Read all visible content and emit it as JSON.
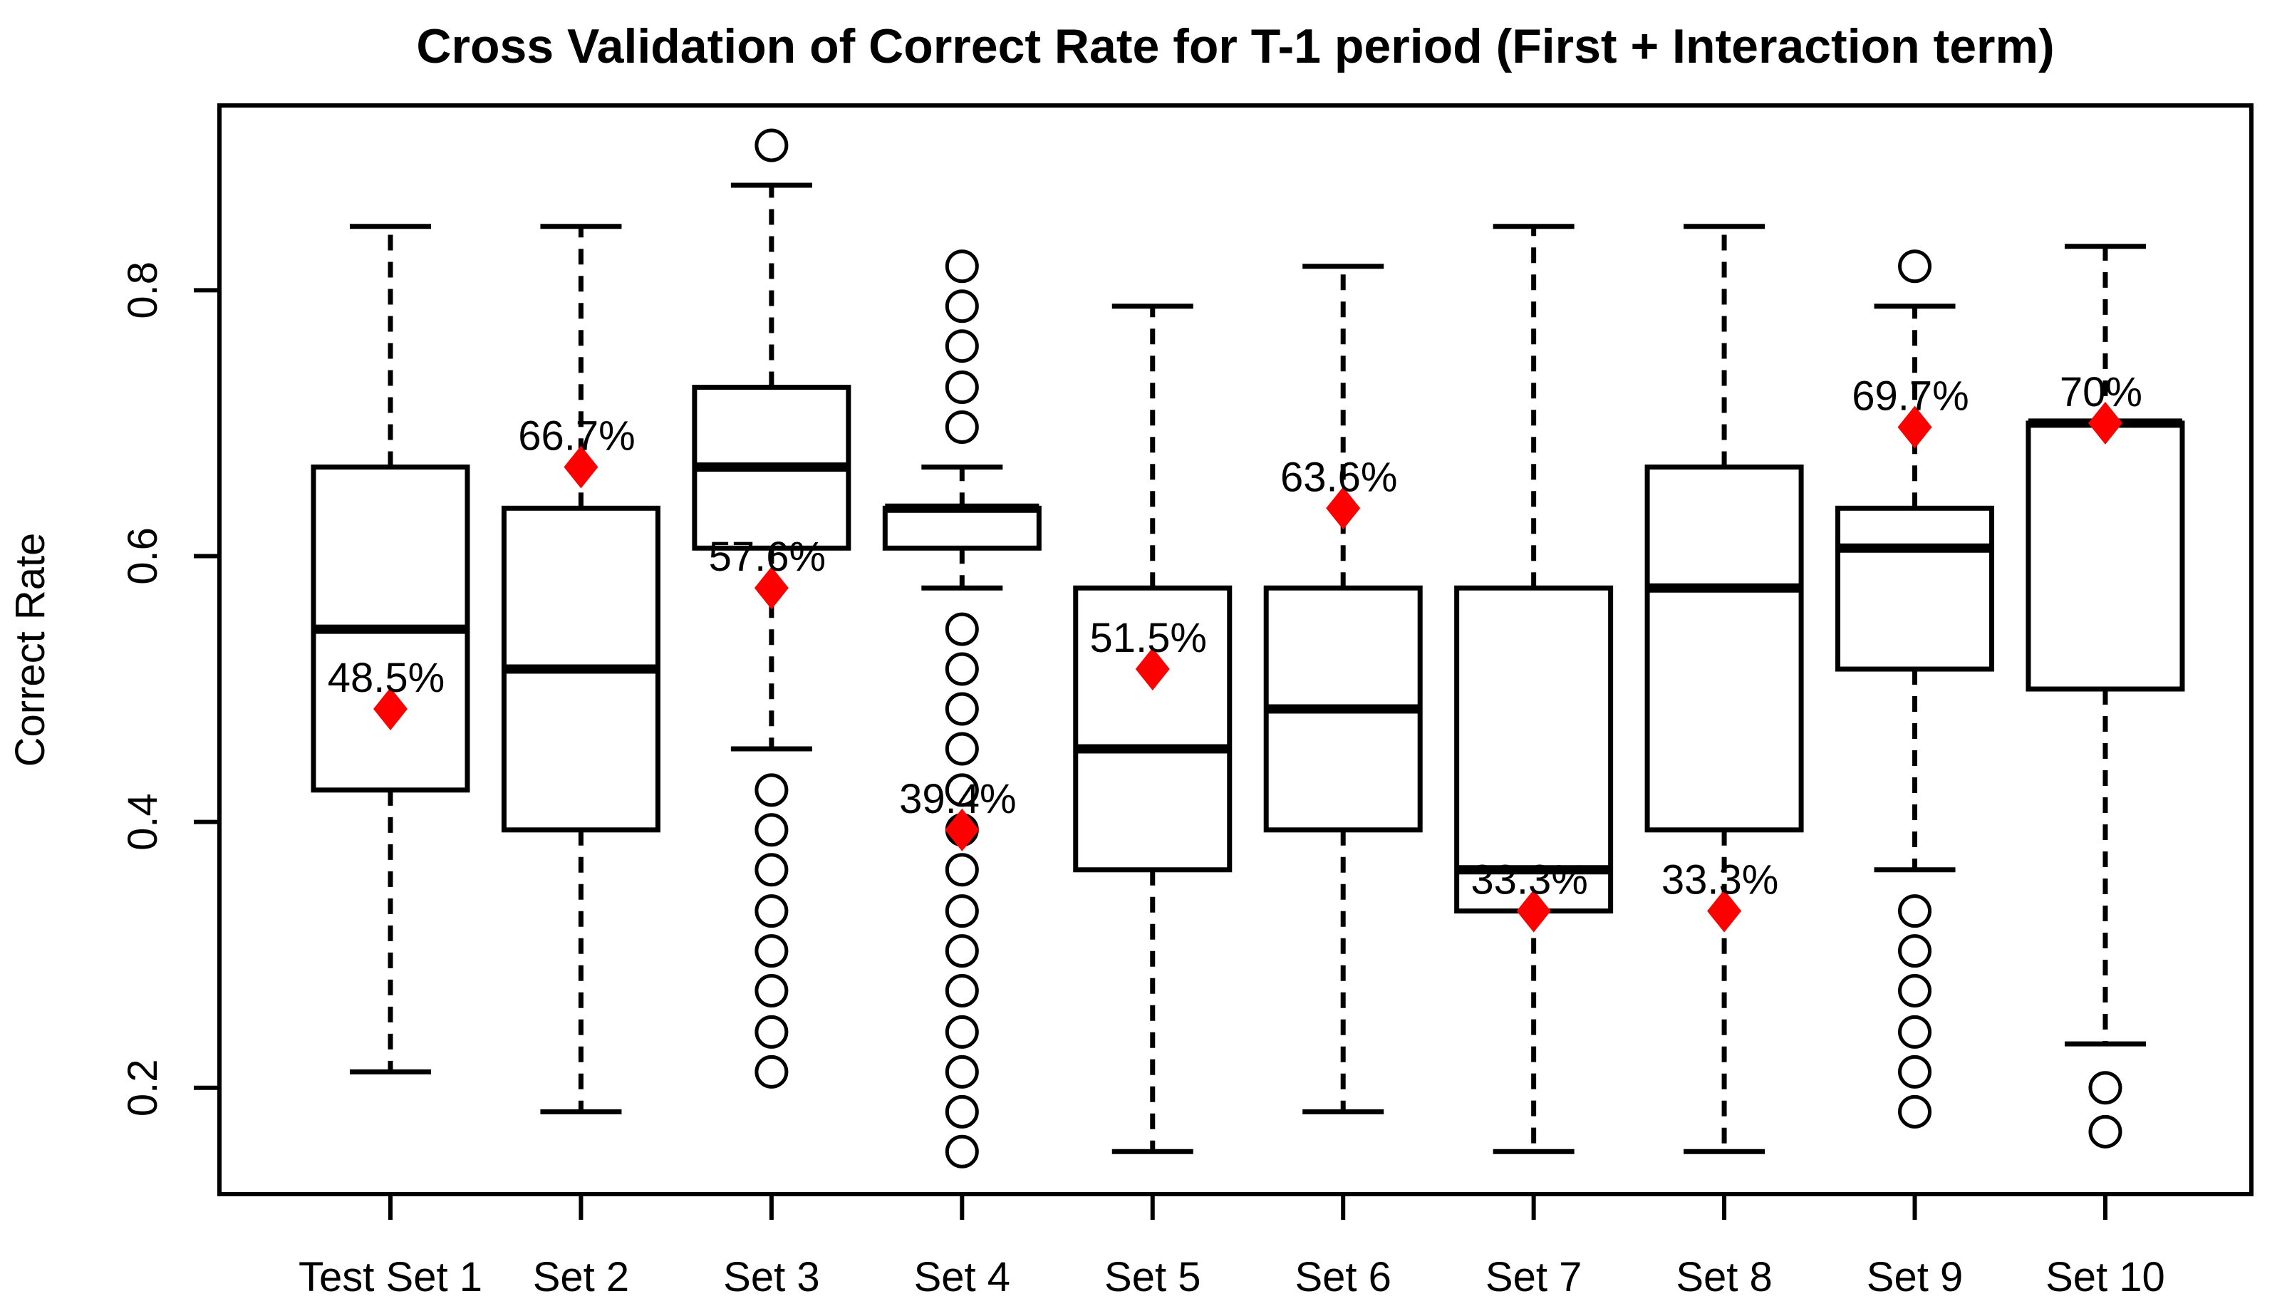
{
  "figure": {
    "background": "#ffffff"
  },
  "chart_data": {
    "type": "boxplot",
    "title": "Cross Validation of Correct Rate for T-1 period (First + Interaction term)",
    "xlabel": "",
    "ylabel": "Correct Rate",
    "y_ticks": [
      0.2,
      0.4,
      0.6,
      0.8
    ],
    "ylim": [
      0.12,
      0.939
    ],
    "grid": false,
    "legend": "none",
    "colors": {
      "box_stroke": "#000000",
      "box_fill": "#ffffff",
      "accuracy": "#ff0000",
      "background": "#ffffff"
    },
    "accuracy_marker": "diamond",
    "categories": [
      "Test Set 1",
      "Set 2",
      "Set 3",
      "Set 4",
      "Set 5",
      "Set 6",
      "Set 7",
      "Set 8",
      "Set 9",
      "Set 10"
    ],
    "series": [
      {
        "name": "Test Set 1",
        "whisker_low": 0.212,
        "q1": 0.424,
        "median": 0.545,
        "q3": 0.667,
        "whisker_high": 0.848,
        "outliers": [],
        "accuracy": {
          "value": 0.485,
          "label": "48.5%"
        }
      },
      {
        "name": "Set 2",
        "whisker_low": 0.182,
        "q1": 0.394,
        "median": 0.515,
        "q3": 0.636,
        "whisker_high": 0.848,
        "outliers": [],
        "accuracy": {
          "value": 0.667,
          "label": "66.7%"
        }
      },
      {
        "name": "Set 3",
        "whisker_low": 0.455,
        "q1": 0.606,
        "median": 0.667,
        "q3": 0.727,
        "whisker_high": 0.879,
        "outliers": [
          0.909,
          0.424,
          0.394,
          0.364,
          0.333,
          0.303,
          0.273,
          0.242,
          0.212
        ],
        "accuracy": {
          "value": 0.576,
          "label": "57.6%"
        }
      },
      {
        "name": "Set 4",
        "whisker_low": 0.576,
        "q1": 0.606,
        "median": 0.636,
        "q3": 0.636,
        "whisker_high": 0.667,
        "outliers": [
          0.818,
          0.788,
          0.758,
          0.727,
          0.697,
          0.545,
          0.515,
          0.485,
          0.455,
          0.424,
          0.394,
          0.364,
          0.333,
          0.303,
          0.273,
          0.242,
          0.212,
          0.182,
          0.152
        ],
        "accuracy": {
          "value": 0.394,
          "label": "39.4%"
        }
      },
      {
        "name": "Set 5",
        "whisker_low": 0.152,
        "q1": 0.364,
        "median": 0.455,
        "q3": 0.576,
        "whisker_high": 0.788,
        "outliers": [],
        "accuracy": {
          "value": 0.515,
          "label": "51.5%"
        }
      },
      {
        "name": "Set 6",
        "whisker_low": 0.182,
        "q1": 0.394,
        "median": 0.485,
        "q3": 0.576,
        "whisker_high": 0.818,
        "outliers": [],
        "accuracy": {
          "value": 0.636,
          "label": "63.6%"
        }
      },
      {
        "name": "Set 7",
        "whisker_low": 0.152,
        "q1": 0.333,
        "median": 0.364,
        "q3": 0.576,
        "whisker_high": 0.848,
        "outliers": [],
        "accuracy": {
          "value": 0.333,
          "label": "33.3%"
        }
      },
      {
        "name": "Set 8",
        "whisker_low": 0.152,
        "q1": 0.394,
        "median": 0.576,
        "q3": 0.667,
        "whisker_high": 0.848,
        "outliers": [],
        "accuracy": {
          "value": 0.333,
          "label": "33.3%"
        }
      },
      {
        "name": "Set 9",
        "whisker_low": 0.364,
        "q1": 0.515,
        "median": 0.606,
        "q3": 0.636,
        "whisker_high": 0.788,
        "outliers": [
          0.818,
          0.333,
          0.303,
          0.273,
          0.242,
          0.212,
          0.182
        ],
        "accuracy": {
          "value": 0.697,
          "label": "69.7%"
        }
      },
      {
        "name": "Set 10",
        "whisker_low": 0.233,
        "q1": 0.5,
        "median": 0.7,
        "q3": 0.7,
        "whisker_high": 0.833,
        "outliers": [
          0.2,
          0.167
        ],
        "accuracy": {
          "value": 0.7,
          "label": "70%"
        }
      }
    ]
  }
}
